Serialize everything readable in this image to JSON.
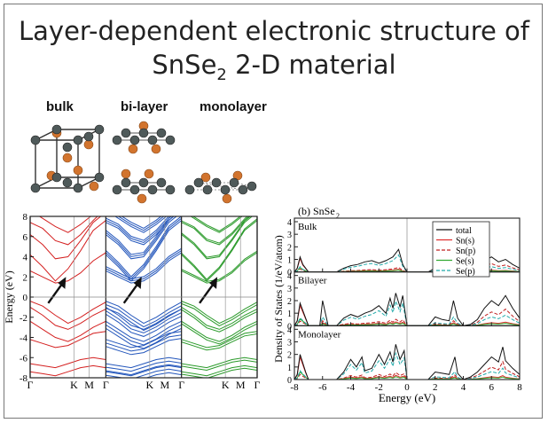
{
  "slide": {
    "title_line1": "Layer-dependent electronic structure of",
    "title_line2_prefix": "SnSe",
    "title_line2_sub": "2",
    "title_line2_suffix": " 2-D material"
  },
  "structures": {
    "labels": [
      "bulk",
      "bi-layer",
      "monolayer"
    ]
  },
  "band_plot": {
    "ylabel": "Energy (eV)",
    "yticks": [
      "8",
      "6",
      "4",
      "2",
      "0",
      "-2",
      "-4",
      "-6",
      "-8"
    ],
    "xticks": [
      "Γ",
      "K",
      "M",
      "Γ",
      "K",
      "M",
      "Γ",
      "K",
      "M",
      "Γ"
    ],
    "panels": [
      {
        "name": "bulk",
        "color": "#d42020"
      },
      {
        "name": "bi-layer",
        "color": "#2255bb"
      },
      {
        "name": "monolayer",
        "color": "#2a9a2a"
      }
    ],
    "ylim": [
      -8,
      8
    ]
  },
  "chart_data": {
    "type": "line",
    "title": "(b) SnSe",
    "title_sub": "2",
    "xlabel": "Energy (eV)",
    "ylabel": "Density of States (1/eV/atom)",
    "xlim": [
      -8,
      8
    ],
    "ylim": [
      0,
      4
    ],
    "xticks": [
      "-8",
      "-6",
      "-4",
      "-2",
      "0",
      "2",
      "4",
      "6",
      "8"
    ],
    "yticks": [
      "0",
      "1",
      "2",
      "3",
      "4"
    ],
    "panels": [
      "Bulk",
      "Bilayer",
      "Monolayer"
    ],
    "legend_placement": "top-right",
    "series": [
      {
        "name": "total",
        "color": "#111111",
        "dash": "none"
      },
      {
        "name": "Sn(s)",
        "color": "#e03030",
        "dash": "none"
      },
      {
        "name": "Sn(p)",
        "color": "#c02020",
        "dash": "4,2"
      },
      {
        "name": "Se(s)",
        "color": "#33aa33",
        "dash": "none"
      },
      {
        "name": "Se(p)",
        "color": "#22aaaa",
        "dash": "4,2"
      }
    ],
    "total_bulk_x": [
      -8,
      -7.8,
      -7.6,
      -7.4,
      -7.2,
      -7.0,
      -6.5,
      -6.0,
      -5.5,
      -5.0,
      -4.5,
      -4.0,
      -3.5,
      -3.0,
      -2.5,
      -2.0,
      -1.5,
      -1.0,
      -0.6,
      -0.3,
      0,
      1.5,
      2.0,
      2.5,
      3.0,
      3.2,
      3.5,
      4.0,
      4.5,
      5.0,
      5.5,
      6.0,
      6.5,
      7.0,
      7.5,
      8
    ],
    "total_bulk_y": [
      0,
      0.3,
      1.2,
      0.6,
      0.3,
      0,
      0,
      0,
      0,
      0,
      0.3,
      0.5,
      0.6,
      0.8,
      0.9,
      0.7,
      0.9,
      1.2,
      1.8,
      0.6,
      0,
      0,
      0.3,
      0.3,
      0.2,
      0.3,
      0,
      0,
      0.1,
      0.6,
      0.9,
      1.2,
      0.8,
      1.0,
      0.6,
      0.3
    ],
    "total_bi_x": [
      -8,
      -7.8,
      -7.6,
      -7.2,
      -7.0,
      -6.2,
      -6.0,
      -5.6,
      -5.0,
      -4.5,
      -4.0,
      -3.5,
      -3.0,
      -2.5,
      -2.0,
      -1.5,
      -1.2,
      -1.0,
      -0.8,
      -0.5,
      -0.3,
      0,
      1.5,
      2.0,
      2.5,
      3.0,
      3.3,
      3.6,
      4.0,
      4.5,
      5.0,
      5.5,
      6.0,
      6.5,
      7.0,
      7.5,
      8
    ],
    "total_bi_y": [
      0,
      0.4,
      1.8,
      0.6,
      0,
      0,
      2.0,
      0,
      0,
      0.6,
      0.9,
      0.7,
      1.0,
      1.2,
      1.6,
      1.0,
      2.2,
      1.4,
      2.6,
      1.5,
      2.4,
      0,
      0,
      0.7,
      0.5,
      0.4,
      2.0,
      0.6,
      0,
      0.1,
      0.5,
      1.4,
      2.0,
      1.6,
      2.4,
      1.4,
      0.6
    ],
    "total_mono_x": [
      -8,
      -7.8,
      -7.6,
      -7.2,
      -7.0,
      -6.0,
      -5.5,
      -5.0,
      -4.5,
      -4.0,
      -3.6,
      -3.2,
      -3.0,
      -2.5,
      -2.0,
      -1.6,
      -1.2,
      -1.0,
      -0.8,
      -0.5,
      -0.2,
      0,
      1.5,
      2.0,
      2.5,
      3.0,
      3.4,
      3.6,
      4.0,
      4.5,
      5.0,
      5.5,
      6.0,
      6.5,
      6.8,
      7.0,
      7.5,
      8
    ],
    "total_mono_y": [
      0,
      0.4,
      2.0,
      0.6,
      0,
      0,
      0,
      0,
      0.6,
      1.6,
      1.0,
      1.8,
      0.7,
      0.9,
      2.0,
      1.2,
      2.2,
      1.4,
      2.8,
      1.6,
      2.3,
      0,
      0,
      0.6,
      0.5,
      0.4,
      1.8,
      0.5,
      0,
      0.2,
      0.6,
      1.2,
      1.8,
      1.4,
      2.6,
      1.5,
      0.9,
      0.4
    ]
  }
}
